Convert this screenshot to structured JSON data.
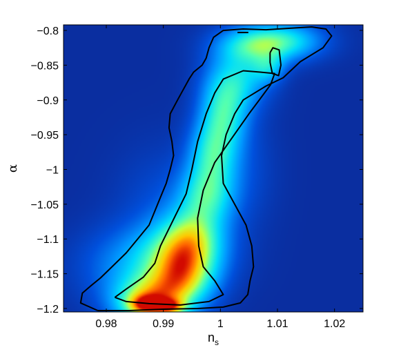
{
  "chart_data": {
    "type": "heatmap",
    "title": "",
    "xlabel_main": "n",
    "xlabel_sub": "s",
    "ylabel": "α",
    "xlim": [
      0.9725,
      1.025
    ],
    "ylim": [
      -1.205,
      -0.792
    ],
    "xticks": [
      0.98,
      0.99,
      1.0,
      1.01,
      1.02
    ],
    "xtick_labels": [
      "0.98",
      "0.99",
      "1",
      "1.01",
      "1.02"
    ],
    "yticks": [
      -0.8,
      -0.85,
      -0.9,
      -0.95,
      -1.0,
      -1.05,
      -1.1,
      -1.15,
      -1.2
    ],
    "ytick_labels": [
      "−0.8",
      "−0.85",
      "−0.9",
      "−0.95",
      "−1",
      "−1.05",
      "−1.1",
      "−1.15",
      "−1.2"
    ],
    "colormap": "jet",
    "background_color": "#0a2ea0",
    "density_blobs": [
      {
        "x": 0.9875,
        "y": -1.192,
        "sx": 0.0045,
        "sy": 0.025,
        "w": 0.65
      },
      {
        "x": 0.9865,
        "y": -1.195,
        "sx": 0.002,
        "sy": 0.01,
        "w": 0.3
      },
      {
        "x": 0.9912,
        "y": -1.198,
        "sx": 0.002,
        "sy": 0.008,
        "w": 0.35
      },
      {
        "x": 0.9935,
        "y": -1.16,
        "sx": 0.004,
        "sy": 0.03,
        "w": 0.45
      },
      {
        "x": 0.995,
        "y": -1.1,
        "sx": 0.004,
        "sy": 0.03,
        "w": 0.45
      },
      {
        "x": 0.992,
        "y": -1.13,
        "sx": 0.006,
        "sy": 0.035,
        "w": 0.4
      },
      {
        "x": 0.9975,
        "y": -1.04,
        "sx": 0.0035,
        "sy": 0.03,
        "w": 0.4
      },
      {
        "x": 0.9985,
        "y": -0.98,
        "sx": 0.003,
        "sy": 0.035,
        "w": 0.42
      },
      {
        "x": 1.0005,
        "y": -0.92,
        "sx": 0.003,
        "sy": 0.035,
        "w": 0.42
      },
      {
        "x": 1.003,
        "y": -0.87,
        "sx": 0.004,
        "sy": 0.03,
        "w": 0.38
      },
      {
        "x": 1.006,
        "y": -0.82,
        "sx": 0.005,
        "sy": 0.02,
        "w": 0.42
      },
      {
        "x": 1.012,
        "y": -0.815,
        "sx": 0.005,
        "sy": 0.02,
        "w": 0.35
      },
      {
        "x": 1.0085,
        "y": -0.855,
        "sx": 0.002,
        "sy": 0.015,
        "w": 0.25
      },
      {
        "x": 0.982,
        "y": -1.14,
        "sx": 0.006,
        "sy": 0.04,
        "w": 0.18
      },
      {
        "x": 0.99,
        "y": -1.05,
        "sx": 0.006,
        "sy": 0.06,
        "w": 0.12
      },
      {
        "x": 1.004,
        "y": -1.0,
        "sx": 0.004,
        "sy": 0.06,
        "w": 0.12
      }
    ],
    "contours": [
      {
        "name": "outer",
        "points": [
          [
            0.9785,
            -1.203
          ],
          [
            0.9755,
            -1.192
          ],
          [
            0.9758,
            -1.178
          ],
          [
            0.9772,
            -1.168
          ],
          [
            0.979,
            -1.156
          ],
          [
            0.981,
            -1.14
          ],
          [
            0.9835,
            -1.12
          ],
          [
            0.9855,
            -1.1
          ],
          [
            0.9875,
            -1.08
          ],
          [
            0.9885,
            -1.06
          ],
          [
            0.9895,
            -1.04
          ],
          [
            0.9905,
            -1.02
          ],
          [
            0.9912,
            -1.0
          ],
          [
            0.9918,
            -0.98
          ],
          [
            0.9915,
            -0.96
          ],
          [
            0.991,
            -0.94
          ],
          [
            0.9912,
            -0.92
          ],
          [
            0.9925,
            -0.9
          ],
          [
            0.9935,
            -0.885
          ],
          [
            0.9945,
            -0.87
          ],
          [
            0.9953,
            -0.86
          ],
          [
            0.9968,
            -0.85
          ],
          [
            0.9975,
            -0.84
          ],
          [
            0.998,
            -0.825
          ],
          [
            0.9988,
            -0.81
          ],
          [
            1.0005,
            -0.8
          ],
          [
            1.004,
            -0.798
          ],
          [
            1.008,
            -0.799
          ],
          [
            1.012,
            -0.797
          ],
          [
            1.016,
            -0.795
          ],
          [
            1.0185,
            -0.798
          ],
          [
            1.0195,
            -0.808
          ],
          [
            1.018,
            -0.825
          ],
          [
            1.014,
            -0.845
          ],
          [
            1.011,
            -0.868
          ],
          [
            1.008,
            -0.88
          ],
          [
            1.004,
            -0.9
          ],
          [
            1.0025,
            -0.92
          ],
          [
            1.001,
            -0.95
          ],
          [
            1.0002,
            -0.98
          ],
          [
            1.0005,
            -1.02
          ],
          [
            1.0025,
            -1.05
          ],
          [
            1.0045,
            -1.08
          ],
          [
            1.0055,
            -1.11
          ],
          [
            1.0058,
            -1.14
          ],
          [
            1.0052,
            -1.16
          ],
          [
            1.0048,
            -1.18
          ],
          [
            1.0035,
            -1.192
          ],
          [
            1.0005,
            -1.198
          ],
          [
            0.996,
            -1.2
          ],
          [
            0.99,
            -1.201
          ],
          [
            0.984,
            -1.203
          ],
          [
            0.9785,
            -1.203
          ]
        ]
      },
      {
        "name": "middle",
        "points": [
          [
            0.9815,
            -1.184
          ],
          [
            0.9835,
            -1.172
          ],
          [
            0.9865,
            -1.155
          ],
          [
            0.9885,
            -1.135
          ],
          [
            0.9895,
            -1.11
          ],
          [
            0.991,
            -1.085
          ],
          [
            0.9925,
            -1.06
          ],
          [
            0.994,
            -1.035
          ],
          [
            0.995,
            -1.0
          ],
          [
            0.996,
            -0.96
          ],
          [
            0.9975,
            -0.92
          ],
          [
            0.999,
            -0.89
          ],
          [
            1.0005,
            -0.87
          ],
          [
            1.004,
            -0.858
          ],
          [
            1.007,
            -0.86
          ],
          [
            1.0095,
            -0.862
          ],
          [
            1.0088,
            -0.878
          ],
          [
            1.007,
            -0.898
          ],
          [
            1.005,
            -0.92
          ],
          [
            1.002,
            -0.955
          ],
          [
            0.999,
            -0.99
          ],
          [
            0.997,
            -1.03
          ],
          [
            0.996,
            -1.07
          ],
          [
            0.9962,
            -1.11
          ],
          [
            0.997,
            -1.14
          ],
          [
            0.999,
            -1.16
          ],
          [
            1.0005,
            -1.18
          ],
          [
            0.998,
            -1.19
          ],
          [
            0.993,
            -1.195
          ],
          [
            0.9875,
            -1.193
          ],
          [
            0.9835,
            -1.19
          ],
          [
            0.9815,
            -1.184
          ]
        ]
      },
      {
        "name": "inner",
        "points": [
          [
            1.0087,
            -0.832
          ],
          [
            1.0092,
            -0.825
          ],
          [
            1.0103,
            -0.828
          ],
          [
            1.0106,
            -0.85
          ],
          [
            1.0102,
            -0.865
          ],
          [
            1.0091,
            -0.862
          ],
          [
            1.0087,
            -0.846
          ],
          [
            1.0087,
            -0.832
          ]
        ]
      },
      {
        "name": "small",
        "points": [
          [
            1.003,
            -0.803
          ],
          [
            1.0049,
            -0.803
          ]
        ]
      }
    ]
  }
}
